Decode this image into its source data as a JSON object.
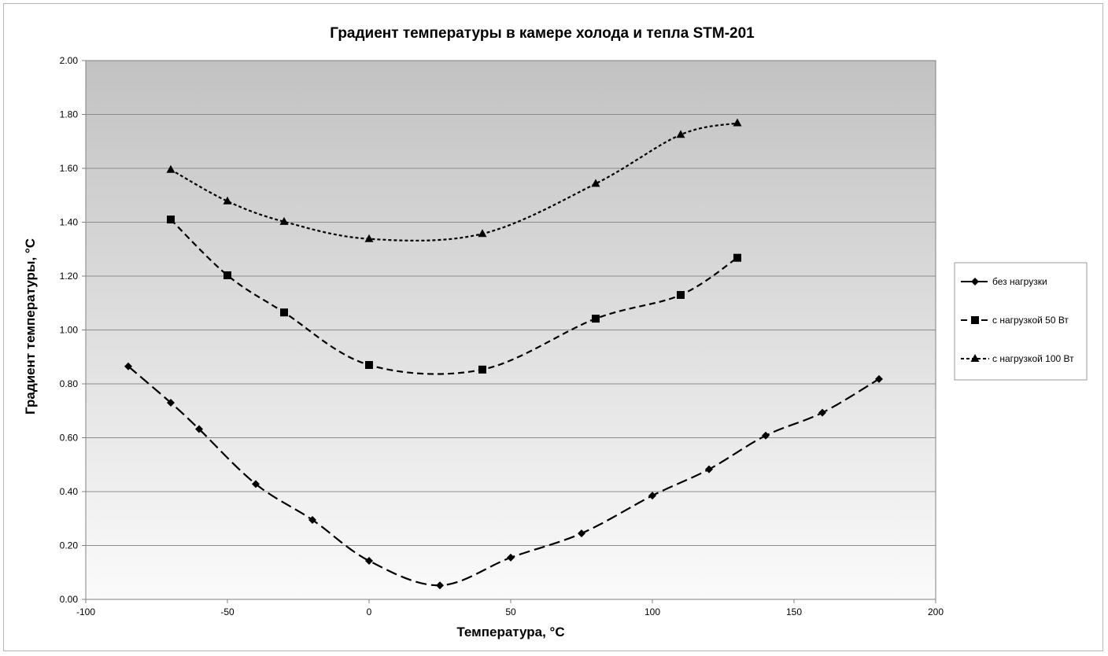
{
  "chart_data": {
    "type": "line",
    "title": "Градиент температуры в камере холода и тепла STM-201",
    "xlabel": "Температура, °С",
    "ylabel": "Градиент температуры, °С",
    "xlim": [
      -100,
      200
    ],
    "ylim": [
      0,
      2
    ],
    "x_ticks": [
      -100,
      -50,
      0,
      50,
      100,
      150,
      200
    ],
    "x_tick_labels": [
      "-100",
      "-50",
      "0",
      "50",
      "100",
      "150",
      "200"
    ],
    "y_ticks": [
      0,
      0.2,
      0.4,
      0.6,
      0.8,
      1.0,
      1.2,
      1.4,
      1.6,
      1.8,
      2.0
    ],
    "y_tick_labels": [
      "0.00",
      "0.20",
      "0.40",
      "0.60",
      "0.80",
      "1.00",
      "1.20",
      "1.40",
      "1.60",
      "1.80",
      "2.00"
    ],
    "grid": "horizontal",
    "legend_position": "right",
    "series": [
      {
        "name": "без нагрузки",
        "marker": "diamond",
        "dash": "long-dash",
        "x": [
          -85,
          -70,
          -60,
          -40,
          -20,
          0,
          25,
          50,
          75,
          100,
          120,
          140,
          160,
          180
        ],
        "y": [
          0.865,
          0.73,
          0.632,
          0.428,
          0.295,
          0.143,
          0.052,
          0.155,
          0.245,
          0.385,
          0.483,
          0.608,
          0.693,
          0.818
        ]
      },
      {
        "name": "с нагрузкой 50 Вт",
        "marker": "square",
        "dash": "dash",
        "x": [
          -70,
          -50,
          -30,
          0,
          40,
          80,
          110,
          130
        ],
        "y": [
          1.41,
          1.203,
          1.065,
          0.87,
          0.853,
          1.042,
          1.13,
          1.268
        ]
      },
      {
        "name": "с нагрузкой 100 Вт",
        "marker": "triangle",
        "dash": "short-dash",
        "x": [
          -70,
          -50,
          -30,
          0,
          40,
          80,
          110,
          130
        ],
        "y": [
          1.595,
          1.478,
          1.402,
          1.338,
          1.357,
          1.543,
          1.725,
          1.768
        ]
      }
    ]
  }
}
